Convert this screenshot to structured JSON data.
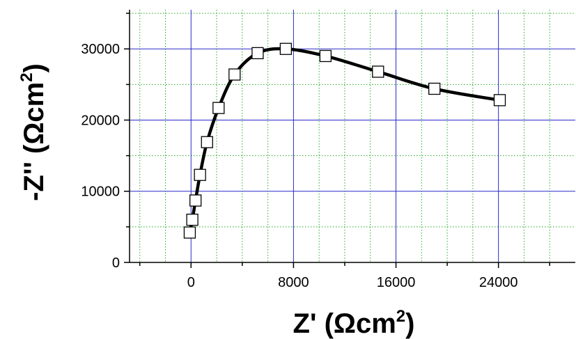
{
  "chart_data": {
    "type": "scatter",
    "xlabel": "Z' (Ωcm²)",
    "ylabel": "-Z'' (Ωcm²)",
    "xlabel_parts": {
      "main": "Z' (Ωcm",
      "sup": "2",
      "close": ")"
    },
    "ylabel_parts": {
      "main": "-Z'' (Ωcm",
      "sup": "2",
      "close": ")"
    },
    "xlim": [
      -4800,
      30000
    ],
    "ylim": [
      0,
      35500
    ],
    "x_ticks": [
      0,
      8000,
      16000,
      24000
    ],
    "x_tick_labels": [
      "0",
      "8000",
      "16000",
      "24000"
    ],
    "y_ticks": [
      0,
      10000,
      20000,
      30000
    ],
    "y_tick_labels": [
      "0",
      "10000",
      "20000",
      "30000"
    ],
    "grid": true,
    "major_grid_color": "#2828c8",
    "minor_grid_color": "#22aa22",
    "line_color": "#000000",
    "series": [
      {
        "marker": "square",
        "line": "smooth",
        "x": [
          -100,
          100,
          350,
          700,
          1250,
          2150,
          3400,
          5200,
          7400,
          10500,
          14600,
          19000,
          24100
        ],
        "y": [
          4200,
          6000,
          8700,
          12300,
          16900,
          21700,
          26400,
          29400,
          30000,
          29000,
          26800,
          24400,
          22800
        ]
      }
    ]
  }
}
